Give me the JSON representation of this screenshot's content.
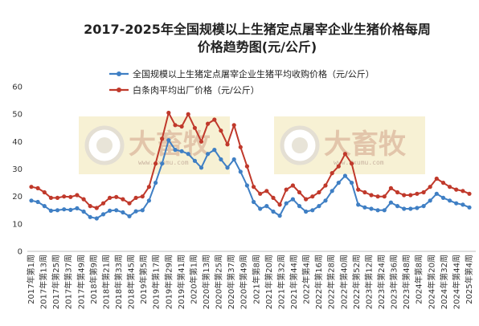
{
  "chart_data": {
    "type": "line",
    "title": "2017-2025年全国规模以上生猪定点屠宰企业生猪价格每周价格趋势图(元/公斤)",
    "title_lines": [
      "2017-2025年全国规模以上生猪定点屠宰企业生猪价格每周",
      "价格趋势图(元/公斤)"
    ],
    "xlabel": "",
    "ylabel": "",
    "ylim": [
      0,
      60
    ],
    "yticks": [
      "0",
      "10",
      "20",
      "30",
      "40",
      "50",
      "60"
    ],
    "grid": false,
    "legend_position": "top",
    "watermark": {
      "text": "大畜牧",
      "url": "www.dxumu.com"
    },
    "x_tick_labels": [
      "2017年第1周",
      "2017年第13周",
      "2017年第25周",
      "2017年第37周",
      "2017年第49周",
      "2018年第9周",
      "2018年第21周",
      "2018年第33周",
      "2018年第45周",
      "2019年第5周",
      "2019年第17周",
      "2019年第29周",
      "2019年第41周",
      "2020年第1周",
      "2020年第13周",
      "2020年第25周",
      "2020年第37周",
      "2020年第49周",
      "2021年第8周",
      "2021年第20周",
      "2021年第32周",
      "2021年第44周",
      "2022年第4周",
      "2022年第16周",
      "2022年第28周",
      "2022年第40周",
      "2022年第52周",
      "2023年第12周",
      "2023年第24周",
      "2023年第36周",
      "2023年第48周",
      "2024年第8周",
      "2024年第20周",
      "2024年第32周",
      "2024年第44周",
      "2025年第4周"
    ],
    "series": [
      {
        "name": "全国规模以上生猪定点屠宰企业生猪平均收购价格（元/公斤）",
        "color": "#3f7fc4",
        "values": [
          18.5,
          18.0,
          16.5,
          14.8,
          15.0,
          15.3,
          15.1,
          15.7,
          14.5,
          12.5,
          12.0,
          13.5,
          14.8,
          15.0,
          14.2,
          12.8,
          14.6,
          15.0,
          18.5,
          25.0,
          32.0,
          40.5,
          37.0,
          36.5,
          35.5,
          33.0,
          30.5,
          35.5,
          37.0,
          33.5,
          30.5,
          33.5,
          29.0,
          24.0,
          18.0,
          15.5,
          16.5,
          14.5,
          13.0,
          17.5,
          19.0,
          16.5,
          14.5,
          15.0,
          16.5,
          18.5,
          22.0,
          25.0,
          27.5,
          25.0,
          17.0,
          16.0,
          15.5,
          15.0,
          15.0,
          17.8,
          16.5,
          15.5,
          15.5,
          15.8,
          16.5,
          18.5,
          21.0,
          19.5,
          18.5,
          17.5,
          17.0,
          16.0
        ]
      },
      {
        "name": "白条肉平均出厂价格（元/公斤）",
        "color": "#c0392b",
        "values": [
          23.5,
          23.0,
          21.5,
          19.5,
          19.5,
          20.0,
          19.8,
          20.5,
          19.0,
          16.5,
          15.8,
          17.5,
          19.5,
          19.8,
          19.0,
          17.5,
          19.5,
          20.0,
          23.5,
          32.0,
          41.0,
          50.5,
          46.0,
          45.5,
          50.0,
          45.0,
          40.0,
          46.5,
          48.0,
          44.0,
          39.0,
          46.0,
          38.0,
          31.0,
          23.5,
          21.0,
          22.0,
          19.5,
          17.0,
          22.5,
          24.0,
          21.5,
          19.0,
          20.0,
          21.5,
          24.0,
          28.5,
          31.0,
          35.5,
          32.0,
          22.5,
          21.5,
          20.5,
          20.0,
          20.0,
          23.0,
          21.5,
          20.5,
          20.5,
          21.0,
          21.5,
          23.5,
          26.5,
          25.0,
          23.5,
          22.5,
          22.0,
          21.0
        ]
      }
    ]
  }
}
